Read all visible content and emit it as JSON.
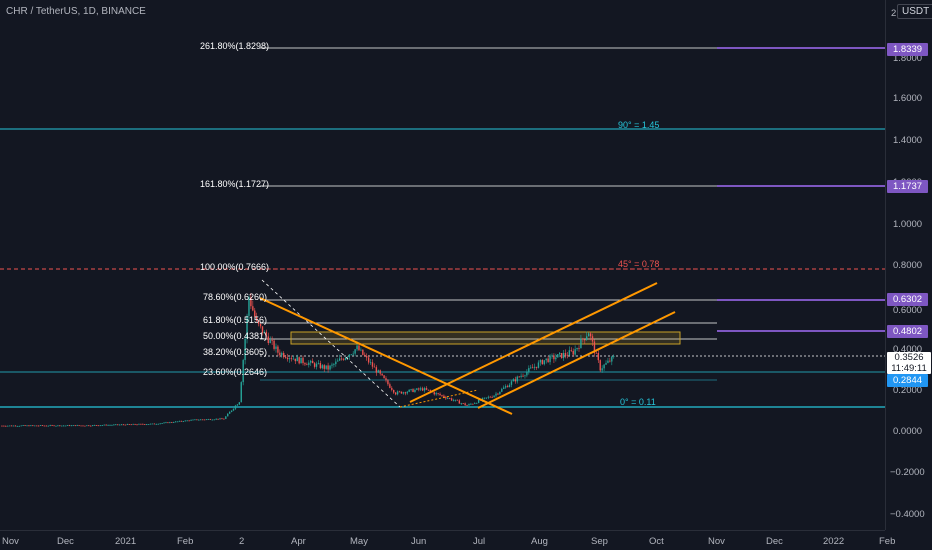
{
  "header": {
    "symbol": "CHR / TetherUS, 1D, BINANCE",
    "currency": "USDT"
  },
  "price_axis": {
    "labels": [
      "2",
      "1.8000",
      "1.6000",
      "1.4000",
      "1.2000",
      "1.0000",
      "0.8000",
      "0.6000",
      "0.4000",
      "0.2000",
      "0.0000",
      "−0.2000",
      "−0.4000"
    ]
  },
  "time_axis": {
    "labels": [
      "Nov",
      "Dec",
      "2021",
      "Feb",
      "2",
      "Apr",
      "May",
      "Jun",
      "Jul",
      "Aug",
      "Sep",
      "Oct",
      "Nov",
      "Dec",
      "2022",
      "Feb"
    ]
  },
  "fib_levels": [
    {
      "label": "261.80%(1.8298)"
    },
    {
      "label": "161.80%(1.1727)"
    },
    {
      "label": "100.00%(0.7666)"
    },
    {
      "label": "78.60%(0.6260)"
    },
    {
      "label": "61.80%(0.5156)"
    },
    {
      "label": "50.00%(0.4381)"
    },
    {
      "label": "38.20%(0.3605)"
    },
    {
      "label": "23.60%(0.2646)"
    }
  ],
  "angle_labels": [
    {
      "text": "90° = 1.45",
      "color": "#26c6da"
    },
    {
      "text": "45° = 0.78",
      "color": "#ef5350"
    },
    {
      "text": "0° = 0.11",
      "color": "#26c6da"
    }
  ],
  "price_tags": {
    "t1": "1.8339",
    "t2": "1.1737",
    "t3": "0.6302",
    "t4": "0.4802",
    "current_price": "0.3526",
    "countdown": "11:49:11",
    "t5": "0.2844"
  },
  "colors": {
    "background": "#131722",
    "up": "#26a69a",
    "down": "#ef5350",
    "trendline": "#ff9800",
    "fib": "#ffffff",
    "cyan": "#26c6da",
    "violet": "#7e57c2",
    "zone": "#c9a227"
  },
  "chart_data": {
    "type": "candlestick",
    "symbol": "CHR / TetherUS",
    "interval": "1D",
    "exchange": "BINANCE",
    "y_range": [
      -0.45,
      2.0
    ],
    "close_path": [
      {
        "x": "2020-11-01",
        "y": 0.021
      },
      {
        "x": "2020-12-15",
        "y": 0.022
      },
      {
        "x": "2021-01-20",
        "y": 0.03
      },
      {
        "x": "2021-02-10",
        "y": 0.05
      },
      {
        "x": "2021-02-25",
        "y": 0.055
      },
      {
        "x": "2021-03-05",
        "y": 0.14
      },
      {
        "x": "2021-03-10",
        "y": 0.65
      },
      {
        "x": "2021-03-14",
        "y": 0.52
      },
      {
        "x": "2021-03-25",
        "y": 0.38
      },
      {
        "x": "2021-04-05",
        "y": 0.34
      },
      {
        "x": "2021-04-20",
        "y": 0.3
      },
      {
        "x": "2021-05-05",
        "y": 0.4
      },
      {
        "x": "2021-05-15",
        "y": 0.29
      },
      {
        "x": "2021-05-25",
        "y": 0.18
      },
      {
        "x": "2021-06-08",
        "y": 0.2
      },
      {
        "x": "2021-06-20",
        "y": 0.16
      },
      {
        "x": "2021-07-01",
        "y": 0.12
      },
      {
        "x": "2021-07-15",
        "y": 0.17
      },
      {
        "x": "2021-07-28",
        "y": 0.26
      },
      {
        "x": "2021-08-10",
        "y": 0.34
      },
      {
        "x": "2021-08-25",
        "y": 0.38
      },
      {
        "x": "2021-09-02",
        "y": 0.48
      },
      {
        "x": "2021-09-08",
        "y": 0.3
      },
      {
        "x": "2021-09-15",
        "y": 0.3526
      }
    ]
  }
}
